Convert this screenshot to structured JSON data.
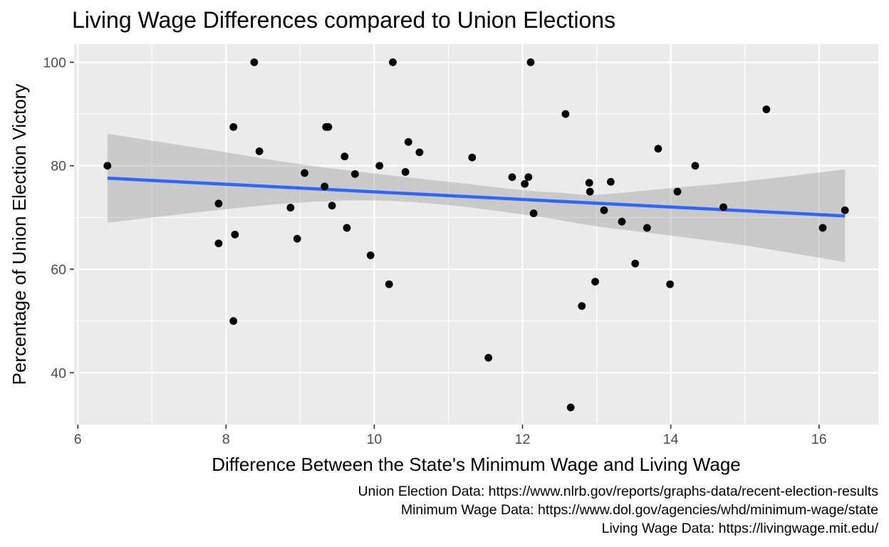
{
  "chart_data": {
    "type": "scatter",
    "title": "Living Wage Differences compared to Union Elections",
    "xlabel": "Difference Between the State's Minimum Wage and Living Wage",
    "ylabel": "Percentage of Union Election Victory",
    "xlim": [
      5.95,
      16.8
    ],
    "ylim": [
      30,
      103.5
    ],
    "x_ticks": [
      6,
      8,
      10,
      12,
      14,
      16
    ],
    "y_ticks": [
      40,
      60,
      80,
      100
    ],
    "x_tick_labels": [
      "6",
      "8",
      "10",
      "12",
      "14",
      "16"
    ],
    "y_tick_labels": [
      "40",
      "60",
      "80",
      "100"
    ],
    "grid": true,
    "points": [
      {
        "x": 6.4,
        "y": 80.0
      },
      {
        "x": 7.9,
        "y": 72.7
      },
      {
        "x": 7.9,
        "y": 65.0
      },
      {
        "x": 8.1,
        "y": 87.5
      },
      {
        "x": 8.1,
        "y": 50.0
      },
      {
        "x": 8.12,
        "y": 66.7
      },
      {
        "x": 8.38,
        "y": 100.0
      },
      {
        "x": 8.45,
        "y": 82.8
      },
      {
        "x": 8.87,
        "y": 71.9
      },
      {
        "x": 8.96,
        "y": 65.9
      },
      {
        "x": 9.06,
        "y": 78.6
      },
      {
        "x": 9.33,
        "y": 76.0
      },
      {
        "x": 9.35,
        "y": 87.5
      },
      {
        "x": 9.38,
        "y": 87.5
      },
      {
        "x": 9.43,
        "y": 72.3
      },
      {
        "x": 9.6,
        "y": 81.8
      },
      {
        "x": 9.63,
        "y": 68.0
      },
      {
        "x": 9.74,
        "y": 78.4
      },
      {
        "x": 9.95,
        "y": 62.7
      },
      {
        "x": 10.07,
        "y": 80.0
      },
      {
        "x": 10.2,
        "y": 57.1
      },
      {
        "x": 10.25,
        "y": 100.0
      },
      {
        "x": 10.42,
        "y": 78.8
      },
      {
        "x": 10.46,
        "y": 84.6
      },
      {
        "x": 10.61,
        "y": 82.6
      },
      {
        "x": 11.32,
        "y": 81.6
      },
      {
        "x": 11.54,
        "y": 42.9
      },
      {
        "x": 11.86,
        "y": 77.8
      },
      {
        "x": 12.03,
        "y": 76.5
      },
      {
        "x": 12.08,
        "y": 77.8
      },
      {
        "x": 12.11,
        "y": 100.0
      },
      {
        "x": 12.15,
        "y": 70.8
      },
      {
        "x": 12.58,
        "y": 90.0
      },
      {
        "x": 12.65,
        "y": 33.3
      },
      {
        "x": 12.8,
        "y": 52.9
      },
      {
        "x": 12.9,
        "y": 76.7
      },
      {
        "x": 12.91,
        "y": 75.0
      },
      {
        "x": 12.98,
        "y": 57.6
      },
      {
        "x": 13.1,
        "y": 71.4
      },
      {
        "x": 13.19,
        "y": 76.9
      },
      {
        "x": 13.34,
        "y": 69.2
      },
      {
        "x": 13.52,
        "y": 61.1
      },
      {
        "x": 13.68,
        "y": 68.0
      },
      {
        "x": 13.83,
        "y": 83.3
      },
      {
        "x": 13.99,
        "y": 57.1
      },
      {
        "x": 14.09,
        "y": 75.0
      },
      {
        "x": 14.33,
        "y": 80.0
      },
      {
        "x": 14.71,
        "y": 72.0
      },
      {
        "x": 15.29,
        "y": 90.9
      },
      {
        "x": 16.05,
        "y": 68.0
      },
      {
        "x": 16.35,
        "y": 71.4
      }
    ],
    "trend": {
      "method": "linear",
      "color": "#3366FF",
      "x": [
        6.4,
        16.35
      ],
      "y": [
        77.6,
        70.3
      ]
    },
    "confidence_band": {
      "x": [
        6.4,
        8.0,
        9.0,
        10.0,
        11.0,
        12.0,
        12.5,
        13.0,
        14.0,
        15.0,
        16.35
      ],
      "lower": [
        69.0,
        71.6,
        72.9,
        73.3,
        72.4,
        70.6,
        69.5,
        68.3,
        66.5,
        64.6,
        61.4
      ],
      "upper": [
        86.2,
        82.6,
        80.3,
        78.5,
        76.9,
        75.3,
        74.8,
        74.4,
        75.7,
        77.0,
        79.3
      ],
      "color": "#999999"
    },
    "colors": {
      "panel_bg": "#EBEBEB",
      "grid": "#FFFFFF",
      "point": "#000000",
      "tick_label": "#4D4D4D"
    }
  },
  "captions": [
    "Union Election Data: https://www.nlrb.gov/reports/graphs-data/recent-election-results",
    "Minimum Wage Data: https://www.dol.gov/agencies/whd/minimum-wage/state",
    "Living Wage Data: https://livingwage.mit.edu/"
  ]
}
